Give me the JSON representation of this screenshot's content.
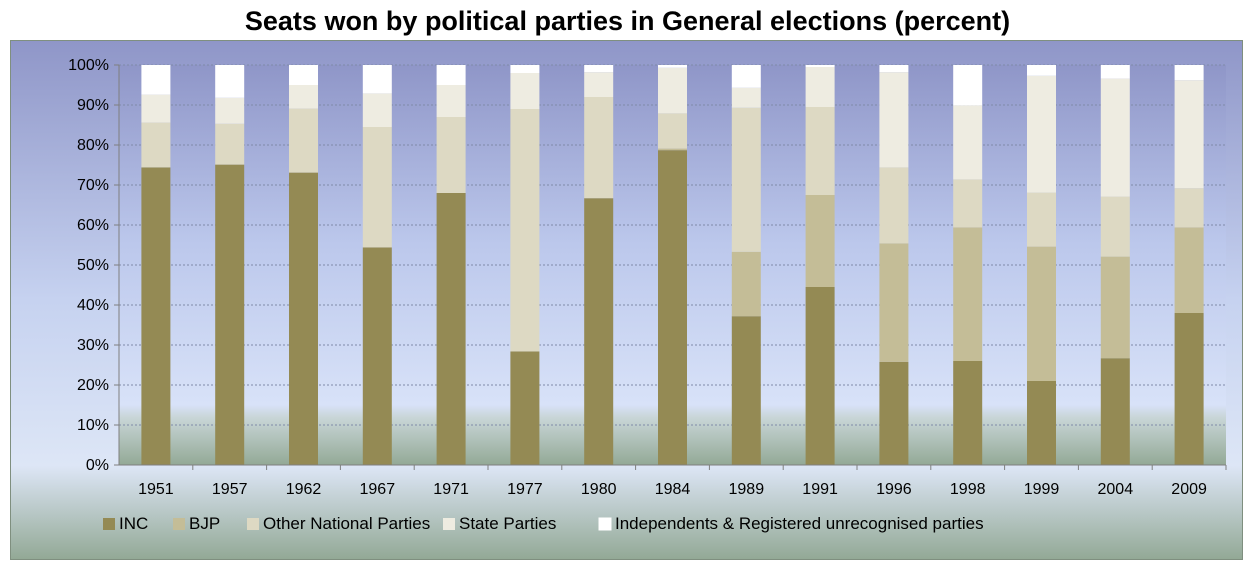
{
  "chart_data": {
    "type": "bar",
    "stacked": "percent",
    "title": "Seats won by political parties in General elections (percent)",
    "xlabel": "",
    "ylabel": "",
    "ylim": [
      0,
      100
    ],
    "y_ticks": [
      "0%",
      "10%",
      "20%",
      "30%",
      "40%",
      "50%",
      "60%",
      "70%",
      "80%",
      "90%",
      "100%"
    ],
    "grid": true,
    "legend_position": "bottom",
    "categories": [
      "1951",
      "1957",
      "1962",
      "1967",
      "1971",
      "1977",
      "1980",
      "1984",
      "1989",
      "1991",
      "1996",
      "1998",
      "1999",
      "2004",
      "2009"
    ],
    "series": [
      {
        "name": "INC",
        "color": "#948a54",
        "values": [
          74.4,
          75.1,
          73.1,
          54.4,
          68.0,
          28.4,
          66.7,
          78.7,
          37.2,
          44.5,
          25.8,
          26.0,
          21.0,
          26.7,
          38.0
        ]
      },
      {
        "name": "BJP",
        "color": "#c4bd97",
        "values": [
          0,
          0,
          0,
          0,
          0,
          0,
          0,
          0.4,
          16.1,
          23.0,
          29.6,
          33.4,
          33.6,
          25.4,
          21.4
        ]
      },
      {
        "name": "Other National Parties",
        "color": "#ddd9c3",
        "values": [
          11.2,
          10.2,
          16.0,
          30.1,
          19.0,
          60.6,
          25.3,
          8.8,
          36.0,
          22.0,
          19.0,
          12.0,
          13.5,
          15.0,
          9.8
        ]
      },
      {
        "name": "State Parties",
        "color": "#eeece1",
        "values": [
          7.0,
          6.5,
          5.9,
          8.4,
          8.0,
          9.0,
          6.2,
          11.4,
          5.0,
          10.0,
          23.8,
          18.5,
          29.2,
          29.5,
          27.0
        ]
      },
      {
        "name": "Independents & Registered unrecognised parties",
        "color": "#ffffff",
        "values": [
          7.4,
          8.2,
          5.0,
          7.1,
          5.0,
          2.0,
          1.8,
          0.7,
          5.7,
          0.5,
          1.8,
          10.1,
          2.7,
          3.4,
          3.8
        ]
      }
    ]
  }
}
